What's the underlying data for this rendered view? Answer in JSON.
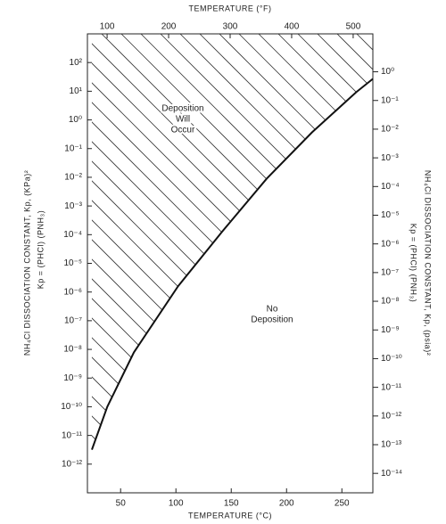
{
  "chart_data": {
    "type": "line",
    "xlabel": "TEMPERATURE (°C)",
    "x2label": "TEMPERATURE (°F)",
    "ylabel": "NH₄Cl DISSOCIATION CONSTANT, Kp, (KPa)²",
    "ylabel_formula": "Kp = (PHCl) (PNH₃)",
    "y2label": "NH₄Cl DISSOCIATION CONSTANT, Kp, (psia)²",
    "y2label_formula": "Kp = (PHCl) (PNH₃)",
    "annotations": [
      [
        "Deposition",
        "Will",
        "Occur"
      ],
      [
        "No",
        "Deposition"
      ]
    ],
    "x": [
      24,
      38,
      62,
      102,
      142,
      182,
      223,
      263,
      278
    ],
    "series": [
      {
        "color": "#111111",
        "values": [
          3.2e-12,
          1e-10,
          7.9e-09,
          1.6e-06,
          0.00013,
          0.0089,
          0.37,
          9.3,
          27
        ]
      }
    ],
    "xlim": [
      20,
      278
    ],
    "xticks": [
      50,
      100,
      150,
      200,
      250
    ],
    "x2lim": [
      68,
      532
    ],
    "x2ticks": [
      100,
      200,
      300,
      400,
      500
    ],
    "log_y": true,
    "ylim": [
      1e-13,
      1000
    ],
    "yticks": [
      {
        "value": 100,
        "label": "10²"
      },
      {
        "value": 10,
        "label": "10¹"
      },
      {
        "value": 1,
        "label": "10⁰"
      },
      {
        "value": 0.1,
        "label": "10⁻¹"
      },
      {
        "value": 0.01,
        "label": "10⁻²"
      },
      {
        "value": 0.001,
        "label": "10⁻³"
      },
      {
        "value": 0.0001,
        "label": "10⁻⁴"
      },
      {
        "value": 1e-05,
        "label": "10⁻⁵"
      },
      {
        "value": 1e-06,
        "label": "10⁻⁶"
      },
      {
        "value": 1e-07,
        "label": "10⁻⁷"
      },
      {
        "value": 1e-08,
        "label": "10⁻⁸"
      },
      {
        "value": 1e-09,
        "label": "10⁻⁹"
      },
      {
        "value": 1e-10,
        "label": "10⁻¹⁰"
      },
      {
        "value": 1e-11,
        "label": "10⁻¹¹"
      },
      {
        "value": 1e-12,
        "label": "10⁻¹²"
      }
    ],
    "y2lim": [
      2.1e-15,
      21
    ],
    "y2ticks": [
      {
        "value": 1,
        "label": "10⁰"
      },
      {
        "value": 0.1,
        "label": "10⁻¹"
      },
      {
        "value": 0.01,
        "label": "10⁻²"
      },
      {
        "value": 0.001,
        "label": "10⁻³"
      },
      {
        "value": 0.0001,
        "label": "10⁻⁴"
      },
      {
        "value": 1e-05,
        "label": "10⁻⁵"
      },
      {
        "value": 1e-06,
        "label": "10⁻⁶"
      },
      {
        "value": 1e-07,
        "label": "10⁻⁷"
      },
      {
        "value": 1e-08,
        "label": "10⁻⁸"
      },
      {
        "value": 1e-09,
        "label": "10⁻⁹"
      },
      {
        "value": 1e-10,
        "label": "10⁻¹⁰"
      },
      {
        "value": 1e-11,
        "label": "10⁻¹¹"
      },
      {
        "value": 1e-12,
        "label": "10⁻¹²"
      },
      {
        "value": 1e-13,
        "label": "10⁻¹³"
      },
      {
        "value": 1e-14,
        "label": "10⁻¹⁴"
      }
    ]
  }
}
